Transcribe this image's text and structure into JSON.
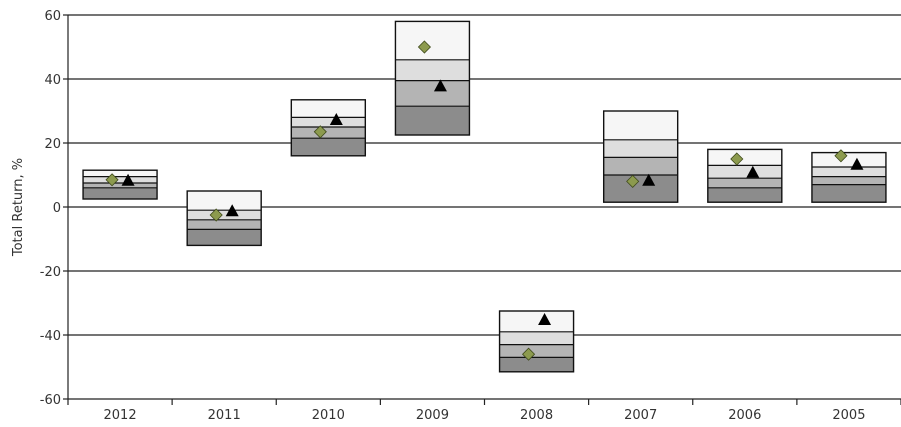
{
  "chart_data": {
    "type": "floating-bar",
    "title": "",
    "xlabel": "",
    "ylabel": "Total Return, %",
    "ylim": [
      -60,
      60
    ],
    "yticks": [
      -60,
      -40,
      -20,
      0,
      20,
      40,
      60
    ],
    "grid": "horizontal",
    "categories": [
      "2012",
      "2011",
      "2010",
      "2009",
      "2008",
      "2007",
      "2006",
      "2005"
    ],
    "bands": [
      {
        "category": "2012",
        "values": [
          2.5,
          6,
          7.5,
          9.5,
          11.5
        ]
      },
      {
        "category": "2011",
        "values": [
          -12,
          -7,
          -4,
          -1,
          5
        ]
      },
      {
        "category": "2010",
        "values": [
          16,
          21.5,
          25,
          28,
          33.5
        ]
      },
      {
        "category": "2009",
        "values": [
          22.5,
          31.5,
          39.5,
          46,
          58
        ]
      },
      {
        "category": "2008",
        "values": [
          -51.5,
          -47,
          -43,
          -39,
          -32.5
        ]
      },
      {
        "category": "2007",
        "values": [
          1.5,
          10,
          15.5,
          21,
          30
        ]
      },
      {
        "category": "2006",
        "values": [
          1.5,
          6,
          9,
          13,
          18
        ]
      },
      {
        "category": "2005",
        "values": [
          1.5,
          7,
          9.5,
          12.5,
          17
        ]
      }
    ],
    "band_colors": [
      "#8c8c8c",
      "#b4b4b4",
      "#dedede",
      "#f6f6f6"
    ],
    "series": [
      {
        "marker": "diamond",
        "color": "#8c9a4e",
        "values": [
          8.5,
          -2.5,
          23.5,
          50,
          -46,
          8,
          15,
          16
        ]
      },
      {
        "marker": "triangle",
        "color": "#000000",
        "values": [
          8.5,
          -1,
          27.5,
          38,
          -35,
          8.5,
          11,
          13.5
        ]
      }
    ]
  }
}
